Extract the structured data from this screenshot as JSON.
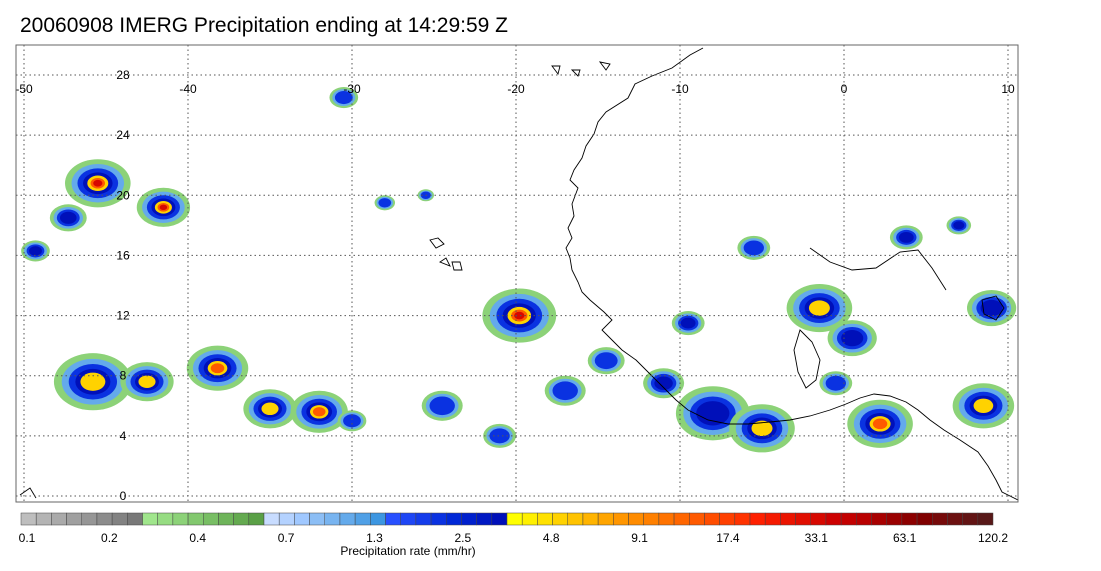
{
  "title": "20060908 IMERG Precipitation ending at 14:29:59 Z",
  "map": {
    "lon_ticks": [
      "-50",
      "-40",
      "-30",
      "-20",
      "-10",
      "0",
      "10"
    ],
    "lat_ticks": [
      "28",
      "24",
      "20",
      "16",
      "12",
      "8",
      "4",
      "0"
    ],
    "lon_range": [
      -50,
      10
    ],
    "lat_range": [
      -1,
      30
    ],
    "grid": "dotted",
    "coastline_color": "#000000",
    "storm_cells": [
      {
        "lon": -45.5,
        "lat": 20.8,
        "r": 1.6,
        "peak": 6
      },
      {
        "lon": -41.5,
        "lat": 19.2,
        "r": 1.3,
        "peak": 6
      },
      {
        "lon": -47.3,
        "lat": 18.5,
        "r": 0.9,
        "peak": 3
      },
      {
        "lon": -49.3,
        "lat": 16.3,
        "r": 0.7,
        "peak": 3
      },
      {
        "lon": -30.5,
        "lat": 26.5,
        "r": 0.7,
        "peak": 2
      },
      {
        "lon": -45.8,
        "lat": 7.6,
        "r": 1.9,
        "peak": 4
      },
      {
        "lon": -42.5,
        "lat": 7.6,
        "r": 1.3,
        "peak": 4
      },
      {
        "lon": -38.2,
        "lat": 8.5,
        "r": 1.5,
        "peak": 5
      },
      {
        "lon": -35.0,
        "lat": 5.8,
        "r": 1.3,
        "peak": 4
      },
      {
        "lon": -32.0,
        "lat": 5.6,
        "r": 1.4,
        "peak": 5
      },
      {
        "lon": -19.8,
        "lat": 12.0,
        "r": 1.8,
        "peak": 6
      },
      {
        "lon": -14.5,
        "lat": 9.0,
        "r": 0.9,
        "peak": 2
      },
      {
        "lon": -9.5,
        "lat": 11.5,
        "r": 0.8,
        "peak": 3
      },
      {
        "lon": -11.0,
        "lat": 7.5,
        "r": 1.0,
        "peak": 3
      },
      {
        "lon": -8.0,
        "lat": 5.5,
        "r": 1.8,
        "peak": 3
      },
      {
        "lon": -5.0,
        "lat": 4.5,
        "r": 1.6,
        "peak": 4
      },
      {
        "lon": -1.5,
        "lat": 12.5,
        "r": 1.6,
        "peak": 4
      },
      {
        "lon": 0.5,
        "lat": 10.5,
        "r": 1.2,
        "peak": 3
      },
      {
        "lon": 2.2,
        "lat": 4.8,
        "r": 1.6,
        "peak": 5
      },
      {
        "lon": 3.8,
        "lat": 17.2,
        "r": 0.8,
        "peak": 3
      },
      {
        "lon": 7.0,
        "lat": 18.0,
        "r": 0.6,
        "peak": 3
      },
      {
        "lon": 8.5,
        "lat": 6.0,
        "r": 1.5,
        "peak": 4
      },
      {
        "lon": 9.0,
        "lat": 12.5,
        "r": 1.2,
        "peak": 3
      },
      {
        "lon": -28.0,
        "lat": 19.5,
        "r": 0.5,
        "peak": 2
      },
      {
        "lon": -25.5,
        "lat": 20.0,
        "r": 0.4,
        "peak": 2
      },
      {
        "lon": -24.5,
        "lat": 6.0,
        "r": 1.0,
        "peak": 2
      },
      {
        "lon": -17.0,
        "lat": 7.0,
        "r": 1.0,
        "peak": 2
      },
      {
        "lon": -0.5,
        "lat": 7.5,
        "r": 0.8,
        "peak": 2
      },
      {
        "lon": -30.0,
        "lat": 5.0,
        "r": 0.7,
        "peak": 2
      },
      {
        "lon": -21.0,
        "lat": 4.0,
        "r": 0.8,
        "peak": 2
      },
      {
        "lon": -5.5,
        "lat": 16.5,
        "r": 0.8,
        "peak": 2
      }
    ]
  },
  "colorbar": {
    "label": "Precipitation rate (mm/hr)",
    "tick_labels": [
      "0.1",
      "0.2",
      "0.4",
      "0.7",
      "1.3",
      "2.5",
      "4.8",
      "9.1",
      "17.4",
      "33.1",
      "63.1",
      "120.2"
    ],
    "colors": [
      "#bebebe",
      "#b4b4b4",
      "#aaaaaa",
      "#a0a0a0",
      "#969696",
      "#8c8c8c",
      "#828282",
      "#787878",
      "#a0e68c",
      "#96dc82",
      "#8cd278",
      "#82c86e",
      "#78be64",
      "#6eb45a",
      "#64aa50",
      "#5aa046",
      "#c8dcff",
      "#b4d2ff",
      "#a0c8ff",
      "#8cbef5",
      "#78b4f0",
      "#64aaeb",
      "#50a0e6",
      "#3c96e1",
      "#2850ff",
      "#1e46f5",
      "#143ceb",
      "#0a32e1",
      "#0028d7",
      "#0020cd",
      "#0018c3",
      "#0010b9",
      "#ffff00",
      "#fff000",
      "#ffe100",
      "#ffd200",
      "#ffc300",
      "#ffb400",
      "#ffa500",
      "#ff9600",
      "#ff8c00",
      "#ff8000",
      "#ff7300",
      "#ff6600",
      "#ff5a00",
      "#ff4d00",
      "#ff4000",
      "#ff3300",
      "#ff2000",
      "#f51a00",
      "#eb1400",
      "#e10e00",
      "#d70800",
      "#cd0000",
      "#c30000",
      "#b90000",
      "#a80000",
      "#9a0000",
      "#8c0000",
      "#800000",
      "#760a0a",
      "#6c1010",
      "#621414",
      "#581818"
    ]
  }
}
